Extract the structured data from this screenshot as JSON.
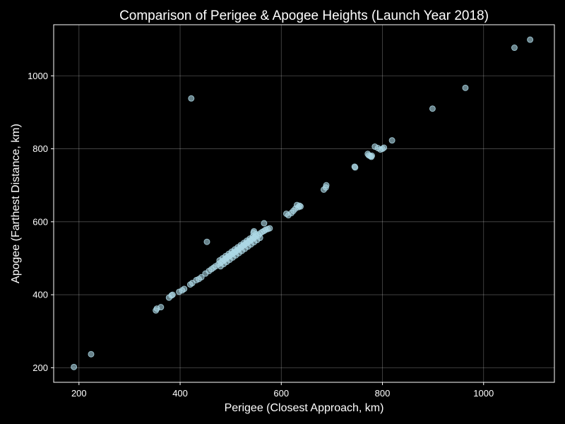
{
  "chart_data": {
    "type": "scatter",
    "title": "Comparison of Perigee & Apogee Heights (Launch Year 2018)",
    "xlabel": "Perigee (Closest Approach, km)",
    "ylabel": "Apogee (Farthest Distance, km)",
    "xlim": [
      150,
      1140
    ],
    "ylim": [
      160,
      1140
    ],
    "xticks": [
      200,
      400,
      600,
      800,
      1000
    ],
    "yticks": [
      200,
      400,
      600,
      800,
      1000
    ],
    "grid": true,
    "point_color": "#add8e6",
    "background": "#000000",
    "series": [
      {
        "points": [
          [
            190,
            202
          ],
          [
            224,
            237
          ],
          [
            352,
            357
          ],
          [
            354,
            362
          ],
          [
            362,
            366
          ],
          [
            378,
            392
          ],
          [
            383,
            398
          ],
          [
            385,
            400
          ],
          [
            398,
            408
          ],
          [
            404,
            412
          ],
          [
            408,
            416
          ],
          [
            420,
            428
          ],
          [
            424,
            432
          ],
          [
            432,
            440
          ],
          [
            437,
            443
          ],
          [
            442,
            448
          ],
          [
            450,
            458
          ],
          [
            457,
            465
          ],
          [
            462,
            470
          ],
          [
            466,
            474
          ],
          [
            470,
            478
          ],
          [
            476,
            484
          ],
          [
            480,
            488
          ],
          [
            484,
            492
          ],
          [
            488,
            496
          ],
          [
            490,
            499
          ],
          [
            493,
            502
          ],
          [
            496,
            505
          ],
          [
            499,
            508
          ],
          [
            502,
            511
          ],
          [
            505,
            514
          ],
          [
            508,
            517
          ],
          [
            511,
            520
          ],
          [
            514,
            523
          ],
          [
            517,
            526
          ],
          [
            520,
            530
          ],
          [
            523,
            533
          ],
          [
            526,
            536
          ],
          [
            529,
            539
          ],
          [
            532,
            542
          ],
          [
            535,
            545
          ],
          [
            538,
            548
          ],
          [
            541,
            551
          ],
          [
            544,
            554
          ],
          [
            547,
            557
          ],
          [
            550,
            560
          ],
          [
            480,
            478
          ],
          [
            486,
            484
          ],
          [
            492,
            490
          ],
          [
            498,
            496
          ],
          [
            504,
            502
          ],
          [
            510,
            508
          ],
          [
            516,
            514
          ],
          [
            522,
            520
          ],
          [
            528,
            526
          ],
          [
            534,
            532
          ],
          [
            540,
            538
          ],
          [
            546,
            544
          ],
          [
            552,
            550
          ],
          [
            558,
            556
          ],
          [
            478,
            494
          ],
          [
            484,
            500
          ],
          [
            490,
            506
          ],
          [
            496,
            512
          ],
          [
            502,
            518
          ],
          [
            508,
            524
          ],
          [
            514,
            530
          ],
          [
            520,
            536
          ],
          [
            526,
            542
          ],
          [
            532,
            548
          ],
          [
            538,
            554
          ],
          [
            544,
            560
          ],
          [
            550,
            566
          ],
          [
            555,
            563
          ],
          [
            558,
            568
          ],
          [
            562,
            572
          ],
          [
            566,
            575
          ],
          [
            569,
            578
          ],
          [
            573,
            580
          ],
          [
            577,
            582
          ],
          [
            545,
            570
          ],
          [
            546,
            574
          ],
          [
            566,
            596
          ],
          [
            453,
            545
          ],
          [
            422,
            938
          ],
          [
            610,
            622
          ],
          [
            614,
            618
          ],
          [
            620,
            624
          ],
          [
            624,
            630
          ],
          [
            628,
            636
          ],
          [
            631,
            646
          ],
          [
            634,
            640
          ],
          [
            636,
            644
          ],
          [
            638,
            642
          ],
          [
            684,
            688
          ],
          [
            688,
            694
          ],
          [
            689,
            700
          ],
          [
            745,
            751
          ],
          [
            746,
            749
          ],
          [
            771,
            786
          ],
          [
            773,
            782
          ],
          [
            776,
            780
          ],
          [
            778,
            778
          ],
          [
            779,
            781
          ],
          [
            785,
            806
          ],
          [
            791,
            802
          ],
          [
            796,
            798
          ],
          [
            800,
            800
          ],
          [
            803,
            803
          ],
          [
            819,
            823
          ],
          [
            899,
            910
          ],
          [
            964,
            967
          ],
          [
            1061,
            1077
          ],
          [
            1092,
            1099
          ]
        ]
      }
    ]
  }
}
